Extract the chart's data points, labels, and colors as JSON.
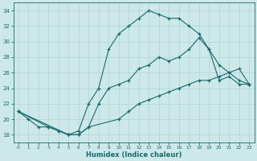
{
  "xlabel": "Humidex (Indice chaleur)",
  "xlim": [
    -0.5,
    23.5
  ],
  "ylim": [
    17,
    35
  ],
  "yticks": [
    18,
    20,
    22,
    24,
    26,
    28,
    30,
    32,
    34
  ],
  "xticks": [
    0,
    1,
    2,
    3,
    4,
    5,
    6,
    7,
    8,
    9,
    10,
    11,
    12,
    13,
    14,
    15,
    16,
    17,
    18,
    19,
    20,
    21,
    22,
    23
  ],
  "bg_color": "#cce8e8",
  "line_color": "#1a6b6b",
  "grid_color": "#b0d4d4",
  "line1_x": [
    0,
    1,
    2,
    3,
    4,
    5,
    6,
    7,
    8,
    9,
    10,
    11,
    12,
    13,
    14,
    15,
    16,
    17,
    18,
    19,
    20,
    21,
    22,
    23
  ],
  "line1_y": [
    21,
    20,
    19,
    19,
    18.5,
    18,
    18.5,
    22,
    24,
    29,
    31,
    32,
    33,
    34,
    33.5,
    33,
    33,
    32,
    31,
    29,
    25,
    25.5,
    24.5,
    24.5
  ],
  "line2_x": [
    0,
    3,
    4,
    5,
    6,
    7,
    8,
    9,
    10,
    11,
    12,
    13,
    14,
    15,
    16,
    17,
    18,
    19,
    20,
    21,
    22,
    23
  ],
  "line2_y": [
    21,
    19,
    18.5,
    18,
    18,
    19,
    22,
    24,
    24.5,
    25,
    26.5,
    27,
    28,
    27.5,
    28,
    29,
    30.5,
    29,
    27,
    26,
    25,
    24.5
  ],
  "line3_x": [
    0,
    5,
    6,
    7,
    10,
    11,
    12,
    13,
    14,
    15,
    16,
    17,
    18,
    19,
    20,
    21,
    22,
    23
  ],
  "line3_y": [
    21,
    18,
    18,
    19,
    20,
    21,
    22,
    22.5,
    23,
    23.5,
    24,
    24.5,
    25,
    25,
    25.5,
    26,
    26.5,
    24.5
  ]
}
